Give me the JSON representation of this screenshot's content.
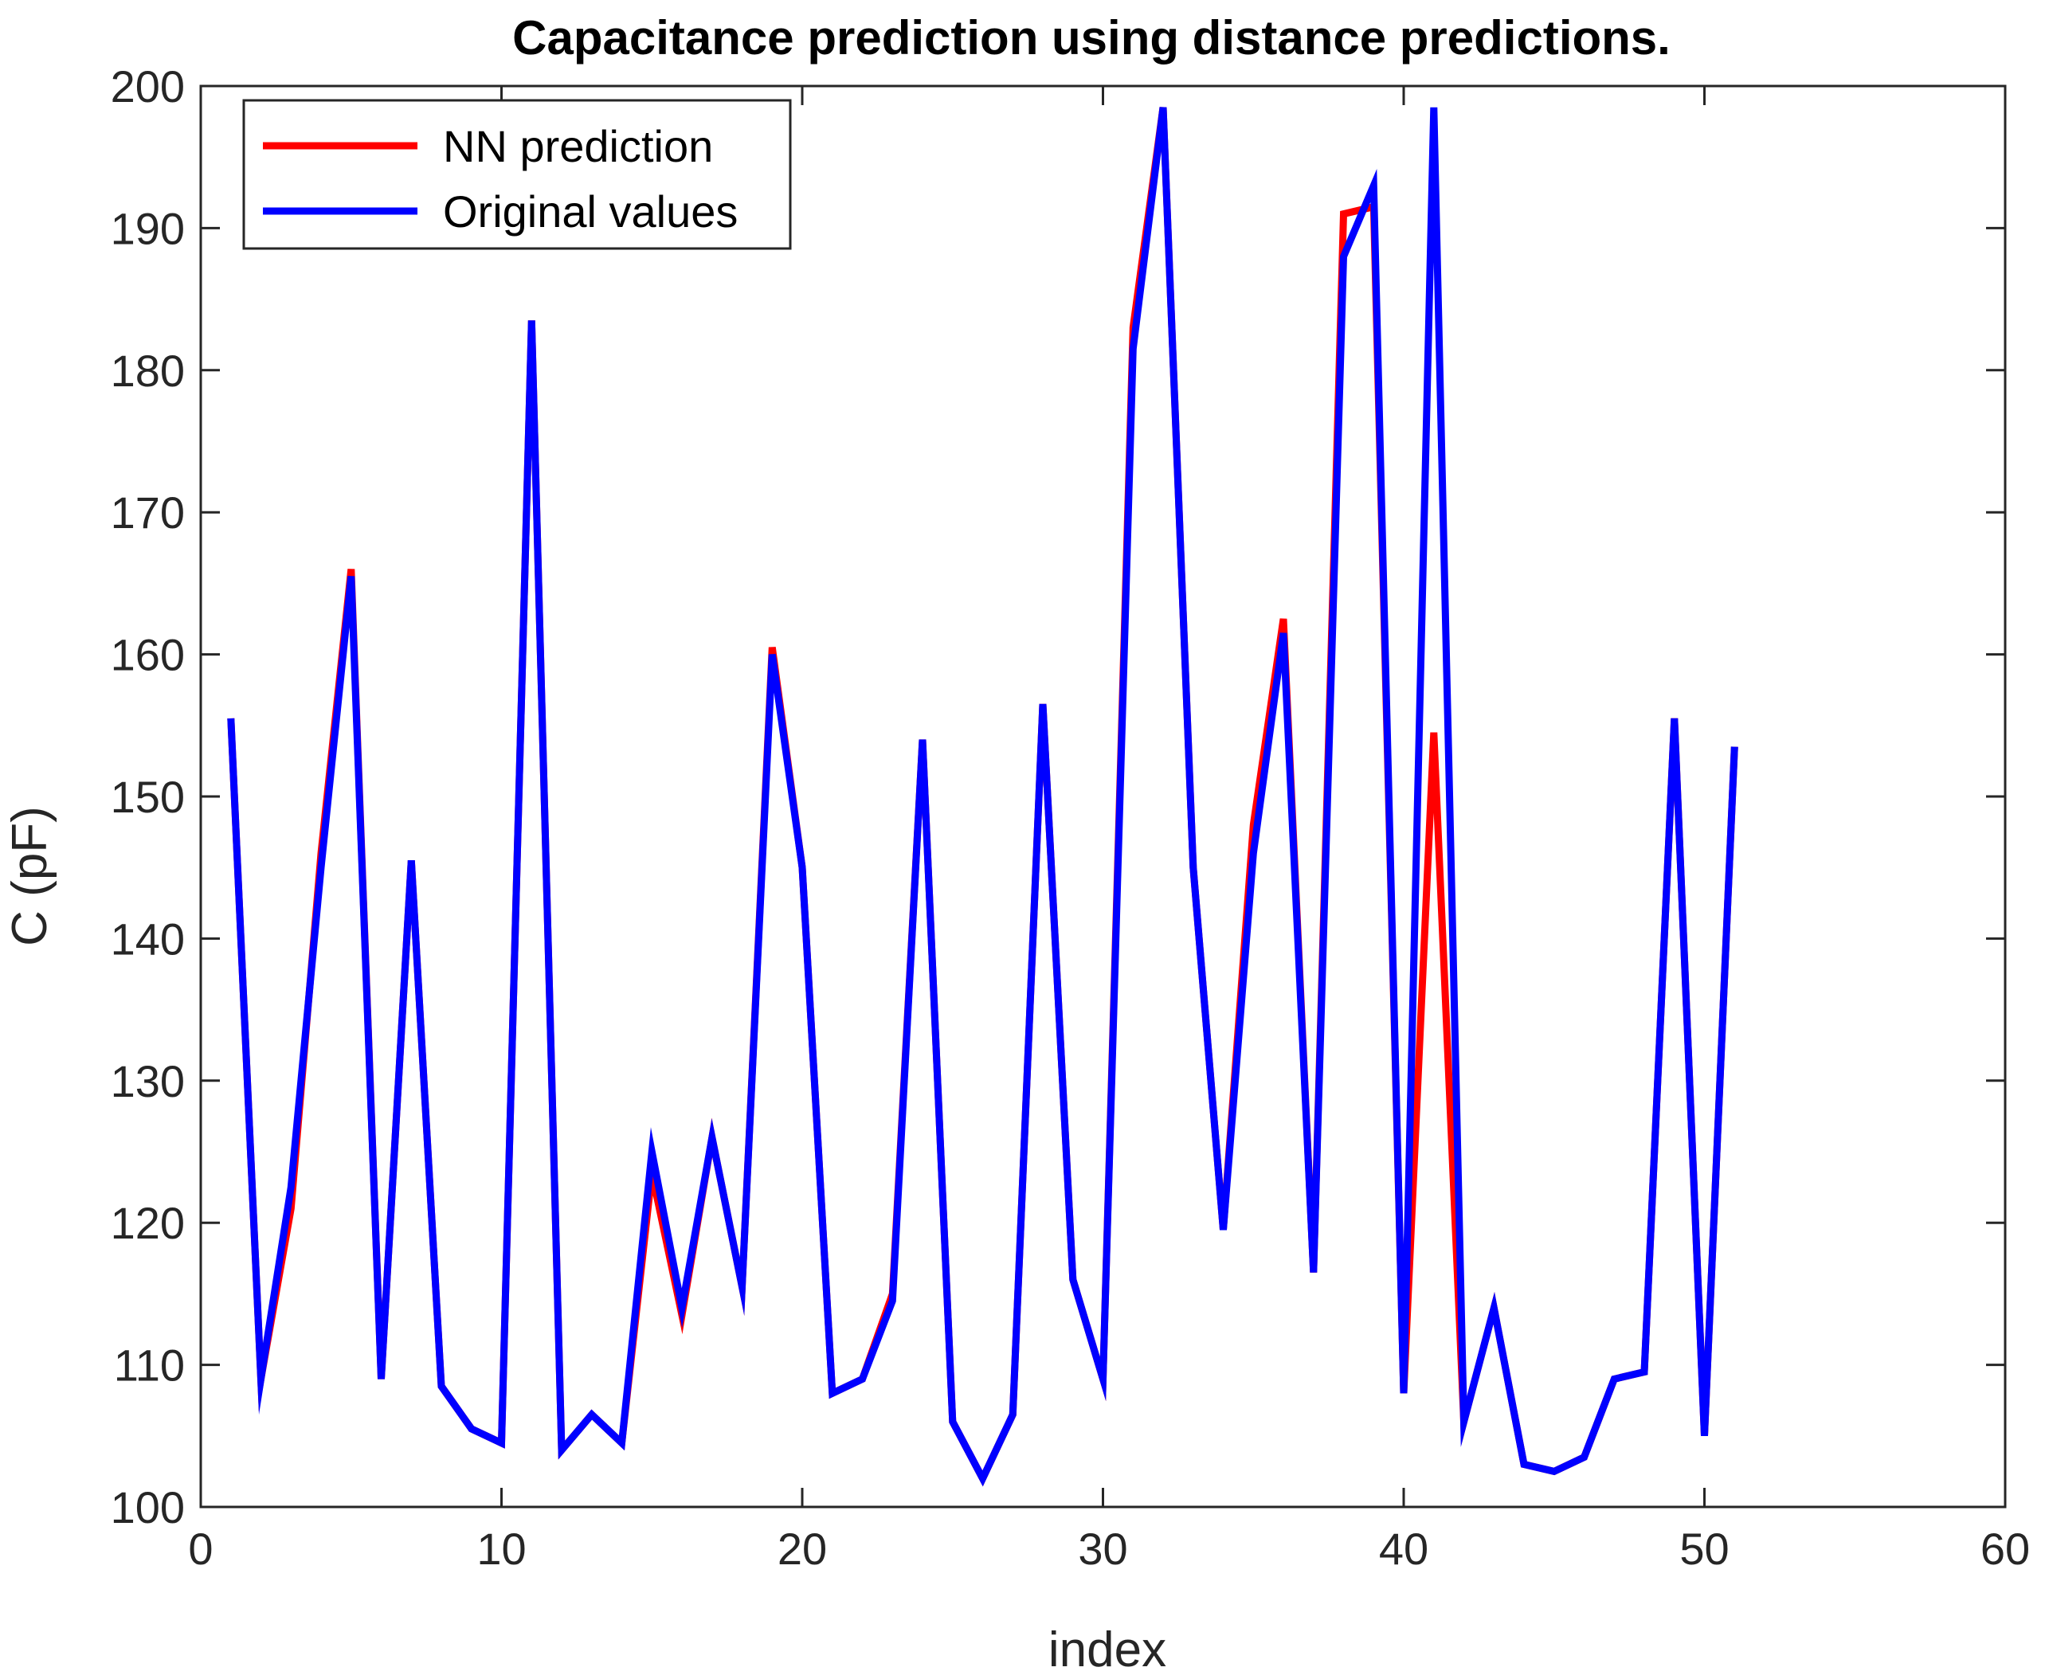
{
  "chart_data": {
    "type": "line",
    "title": "Capacitance prediction using distance predictions.",
    "xlabel": "index",
    "ylabel": "C (pF)",
    "xlim": [
      0,
      60
    ],
    "ylim": [
      100,
      200
    ],
    "xticks": [
      0,
      10,
      20,
      30,
      40,
      50,
      60
    ],
    "yticks": [
      100,
      110,
      120,
      130,
      140,
      150,
      160,
      170,
      180,
      190,
      200
    ],
    "grid": false,
    "legend_position": "top-left",
    "x": [
      1,
      2,
      3,
      4,
      5,
      6,
      7,
      8,
      9,
      10,
      11,
      12,
      13,
      14,
      15,
      16,
      17,
      18,
      19,
      20,
      21,
      22,
      23,
      24,
      25,
      26,
      27,
      28,
      29,
      30,
      31,
      32,
      33,
      34,
      35,
      36,
      37,
      38,
      39,
      40,
      41,
      42,
      43,
      44,
      45,
      46,
      47,
      48,
      49,
      50,
      51
    ],
    "series": [
      {
        "name": "NN prediction",
        "color": "#ff0000",
        "values": [
          155.5,
          109.0,
          121.0,
          146.0,
          166.0,
          109.0,
          145.5,
          108.5,
          105.5,
          104.5,
          183.5,
          104.0,
          106.5,
          104.5,
          123.5,
          113.5,
          126.0,
          115.5,
          160.5,
          145.0,
          108.0,
          109.0,
          115.0,
          154.0,
          106.0,
          102.0,
          106.5,
          156.5,
          116.0,
          109.0,
          183.0,
          198.5,
          145.0,
          119.5,
          148.0,
          162.5,
          116.5,
          191.0,
          191.5,
          108.0,
          154.5,
          106.0,
          114.0,
          103.0,
          102.5,
          103.5,
          109.0,
          109.5,
          155.5,
          105.0,
          153.5
        ]
      },
      {
        "name": "Original values",
        "color": "#0000ff",
        "values": [
          155.5,
          109.0,
          122.5,
          145.0,
          165.5,
          109.0,
          145.5,
          108.5,
          105.5,
          104.5,
          183.5,
          104.0,
          106.5,
          104.5,
          125.0,
          114.0,
          126.0,
          115.5,
          160.0,
          145.0,
          108.0,
          109.0,
          114.5,
          154.0,
          106.0,
          102.0,
          106.5,
          156.5,
          116.0,
          109.0,
          181.5,
          198.5,
          145.0,
          119.5,
          146.0,
          161.5,
          116.5,
          188.0,
          193.0,
          108.0,
          198.5,
          106.0,
          114.0,
          103.0,
          102.5,
          103.5,
          109.0,
          109.5,
          155.5,
          105.0,
          153.5
        ]
      }
    ]
  }
}
